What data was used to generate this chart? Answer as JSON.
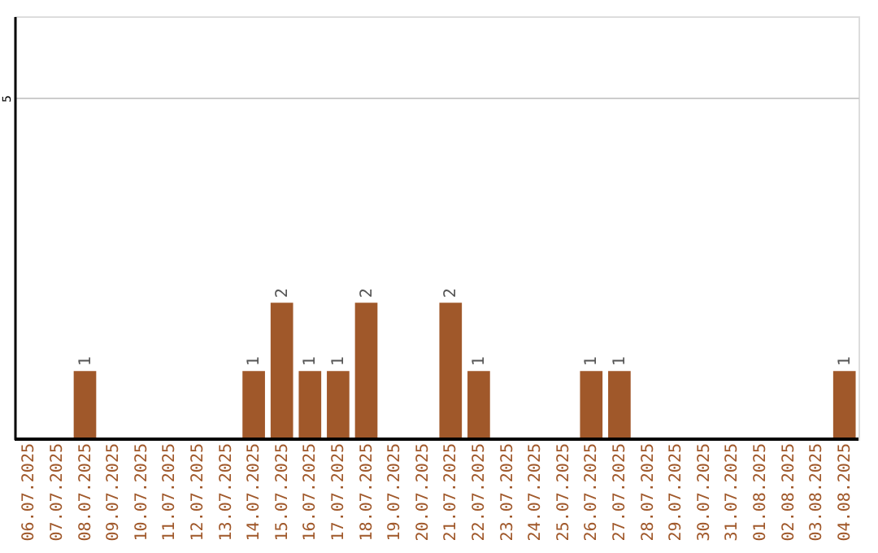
{
  "chart_data": {
    "type": "bar",
    "categories": [
      "06.07.2025",
      "07.07.2025",
      "08.07.2025",
      "09.07.2025",
      "10.07.2025",
      "11.07.2025",
      "12.07.2025",
      "13.07.2025",
      "14.07.2025",
      "15.07.2025",
      "16.07.2025",
      "17.07.2025",
      "18.07.2025",
      "19.07.2025",
      "20.07.2025",
      "21.07.2025",
      "22.07.2025",
      "23.07.2025",
      "24.07.2025",
      "25.07.2025",
      "26.07.2025",
      "27.07.2025",
      "28.07.2025",
      "29.07.2025",
      "30.07.2025",
      "31.07.2025",
      "01.08.2025",
      "02.08.2025",
      "03.08.2025",
      "04.08.2025"
    ],
    "values": [
      0,
      0,
      1,
      0,
      0,
      0,
      0,
      0,
      1,
      2,
      1,
      1,
      2,
      0,
      0,
      2,
      1,
      0,
      0,
      0,
      1,
      1,
      0,
      0,
      0,
      0,
      0,
      0,
      0,
      1
    ],
    "value_labels": [
      null,
      null,
      "1",
      null,
      null,
      null,
      null,
      null,
      "1",
      "2",
      "1",
      "1",
      "2",
      null,
      null,
      "2",
      "1",
      null,
      null,
      null,
      "1",
      "1",
      null,
      null,
      null,
      null,
      null,
      null,
      null,
      "1"
    ],
    "color": "#a0582a",
    "ylim": [
      0,
      6.2
    ],
    "yticks": [
      5
    ],
    "grid": "y"
  }
}
